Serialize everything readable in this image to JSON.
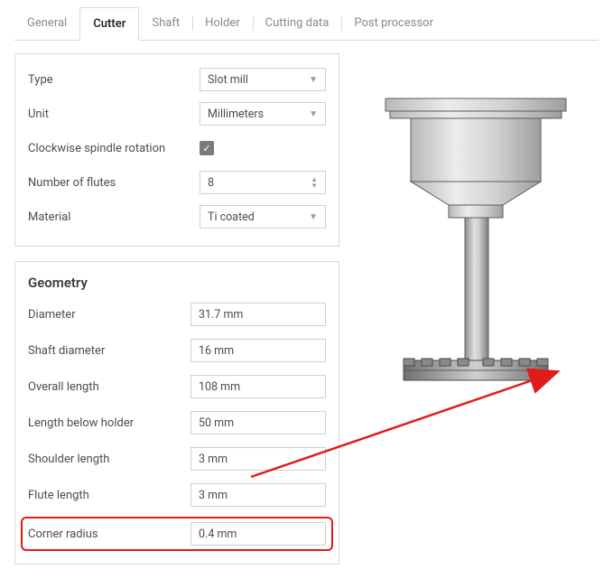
{
  "tabs": [
    {
      "label": "General",
      "active": false
    },
    {
      "label": "Cutter",
      "active": true
    },
    {
      "label": "Shaft",
      "active": false
    },
    {
      "label": "Holder",
      "active": false
    },
    {
      "label": "Cutting data",
      "active": false
    },
    {
      "label": "Post processor",
      "active": false
    }
  ],
  "properties": {
    "type_label": "Type",
    "type_value": "Slot mill",
    "unit_label": "Unit",
    "unit_value": "Millimeters",
    "cw_label": "Clockwise spindle rotation",
    "cw_checked": true,
    "flutes_label": "Number of flutes",
    "flutes_value": "8",
    "material_label": "Material",
    "material_value": "Ti coated"
  },
  "geometry": {
    "heading": "Geometry",
    "rows": [
      {
        "label": "Diameter",
        "value": "31.7 mm"
      },
      {
        "label": "Shaft diameter",
        "value": "16 mm"
      },
      {
        "label": "Overall length",
        "value": "108 mm"
      },
      {
        "label": "Length below holder",
        "value": "50 mm"
      },
      {
        "label": "Shoulder length",
        "value": "3 mm"
      },
      {
        "label": "Flute length",
        "value": "3 mm"
      },
      {
        "label": "Corner radius",
        "value": "0.4 mm",
        "highlight": true
      }
    ]
  },
  "colors": {
    "accent_highlight": "#e11b1b",
    "border": "#d8d8d8",
    "text": "#3c3c3c",
    "muted": "#8a8a8a",
    "check_bg": "#7a7a7a"
  },
  "tool_preview": {
    "holder_color_light": "#dedede",
    "holder_color_dark": "#a9a9a9",
    "shaft_color_light": "#cfcfcf",
    "shaft_color_dark": "#8f8f8f",
    "cutter_color_light": "#c8c8c8",
    "cutter_color_dark": "#6f6f6f",
    "outline": "#5c5c5c"
  }
}
